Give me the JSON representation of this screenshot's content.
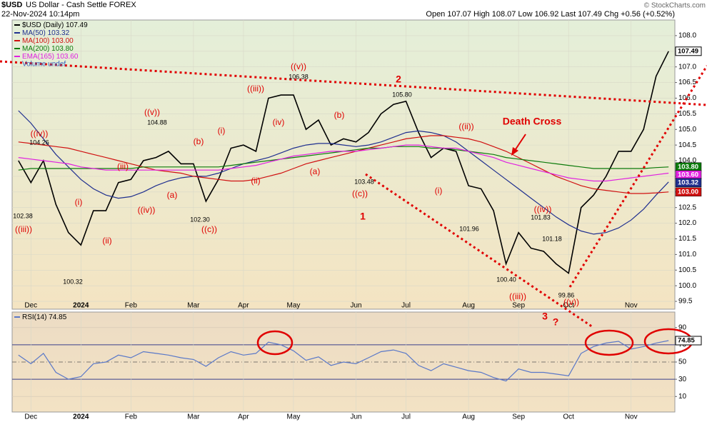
{
  "header": {
    "symbol": "$USD",
    "name": "US Dollar - Cash Settle FOREX",
    "date": "22-Nov-2024 10:14pm",
    "quote": "Open 107.07 High 108.07 Low 106.92 Last 107.49 Chg +0.56 (+0.52%)",
    "credit": "© StockCharts.com"
  },
  "chart_data": [
    {
      "type": "line",
      "categories": [
        null,
        "Dec",
        null,
        null,
        null,
        "2024",
        null,
        null,
        null,
        "Feb",
        null,
        null,
        null,
        null,
        "Mar",
        null,
        null,
        null,
        "Apr",
        null,
        null,
        null,
        "May",
        null,
        null,
        null,
        null,
        "Jun",
        null,
        null,
        null,
        "Jul",
        null,
        null,
        null,
        null,
        "Aug",
        null,
        null,
        null,
        "Sep",
        null,
        null,
        null,
        "Oct",
        null,
        null,
        null,
        null,
        "Nov",
        null,
        null,
        null
      ],
      "series": [
        {
          "name": "$USD (Daily)",
          "color": "#000000",
          "value_label": "107.49",
          "values": [
            104.0,
            103.3,
            104.0,
            102.6,
            101.7,
            101.3,
            102.4,
            102.4,
            103.3,
            103.4,
            104.0,
            104.1,
            104.3,
            103.9,
            103.9,
            102.7,
            103.4,
            104.4,
            104.5,
            104.3,
            106.0,
            106.1,
            106.1,
            105.0,
            105.3,
            104.5,
            104.7,
            104.6,
            104.9,
            105.5,
            105.8,
            105.9,
            104.9,
            104.1,
            104.4,
            104.3,
            103.2,
            103.1,
            102.4,
            100.7,
            101.7,
            101.2,
            101.1,
            100.7,
            100.4,
            102.5,
            102.9,
            103.5,
            104.3,
            104.3,
            105.0,
            106.7,
            107.5
          ]
        },
        {
          "name": "MA(50)",
          "color": "#1f2f8f",
          "value_label": "103.32",
          "values": [
            105.6,
            105.2,
            104.7,
            104.2,
            103.8,
            103.4,
            103.1,
            102.9,
            102.8,
            102.85,
            103.0,
            103.2,
            103.35,
            103.45,
            103.5,
            103.5,
            103.6,
            103.75,
            103.9,
            104.0,
            104.1,
            104.25,
            104.4,
            104.5,
            104.55,
            104.55,
            104.5,
            104.45,
            104.5,
            104.6,
            104.75,
            104.9,
            104.95,
            104.9,
            104.8,
            104.6,
            104.3,
            104.0,
            103.7,
            103.4,
            103.1,
            102.8,
            102.5,
            102.2,
            101.95,
            101.75,
            101.65,
            101.7,
            101.85,
            102.1,
            102.45,
            102.9,
            103.32
          ]
        },
        {
          "name": "MA(100)",
          "color": "#d01010",
          "value_label": "103.00",
          "values": [
            104.6,
            104.55,
            104.5,
            104.45,
            104.4,
            104.3,
            104.2,
            104.1,
            104.0,
            103.9,
            103.8,
            103.7,
            103.65,
            103.6,
            103.5,
            103.45,
            103.4,
            103.35,
            103.35,
            103.4,
            103.5,
            103.6,
            103.75,
            103.9,
            104.0,
            104.1,
            104.2,
            104.3,
            104.4,
            104.5,
            104.6,
            104.7,
            104.75,
            104.8,
            104.8,
            104.75,
            104.7,
            104.6,
            104.45,
            104.3,
            104.1,
            103.9,
            103.7,
            103.5,
            103.35,
            103.2,
            103.1,
            103.05,
            103.0,
            102.95,
            102.95,
            102.97,
            103.0
          ]
        },
        {
          "name": "MA(200)",
          "color": "#0b7a0b",
          "value_label": "103.80",
          "values": [
            103.7,
            103.75,
            103.75,
            103.75,
            103.75,
            103.75,
            103.75,
            103.75,
            103.75,
            103.75,
            103.8,
            103.8,
            103.8,
            103.8,
            103.8,
            103.8,
            103.8,
            103.85,
            103.9,
            103.95,
            104.0,
            104.05,
            104.1,
            104.15,
            104.2,
            104.25,
            104.3,
            104.35,
            104.4,
            104.4,
            104.45,
            104.45,
            104.45,
            104.4,
            104.4,
            104.35,
            104.3,
            104.25,
            104.2,
            104.1,
            104.05,
            104.0,
            103.95,
            103.9,
            103.85,
            103.8,
            103.75,
            103.75,
            103.75,
            103.75,
            103.75,
            103.78,
            103.8
          ]
        },
        {
          "name": "EMA(165)",
          "color": "#e020e0",
          "value_label": "103.60",
          "values": [
            104.1,
            104.05,
            104.0,
            103.95,
            103.9,
            103.8,
            103.75,
            103.7,
            103.7,
            103.7,
            103.7,
            103.7,
            103.7,
            103.7,
            103.7,
            103.7,
            103.7,
            103.75,
            103.8,
            103.85,
            103.95,
            104.05,
            104.15,
            104.2,
            104.25,
            104.3,
            104.3,
            104.3,
            104.35,
            104.4,
            104.45,
            104.5,
            104.5,
            104.45,
            104.4,
            104.4,
            104.3,
            104.2,
            104.1,
            103.95,
            103.85,
            103.75,
            103.65,
            103.55,
            103.45,
            103.4,
            103.35,
            103.35,
            103.4,
            103.45,
            103.5,
            103.55,
            103.6
          ]
        }
      ],
      "legend_extra": "Volume undef",
      "ylim": [
        99.25,
        108.5
      ],
      "yticks": [
        99.5,
        {
          "value": 100,
          "label": "100.0"
        },
        100.5,
        {
          "value": 101,
          "label": "101.0"
        },
        101.5,
        {
          "value": 102,
          "label": "102.0"
        },
        102.5,
        {
          "value": 103,
          "label": "103.0"
        },
        103.5,
        {
          "value": 104,
          "label": "104.0"
        },
        104.5,
        {
          "value": 105,
          "label": "105.0"
        },
        105.5,
        {
          "value": 106,
          "label": "106.0"
        },
        106.5,
        {
          "value": 107,
          "label": "107.0"
        },
        107.5,
        {
          "value": 108,
          "label": "108.0"
        }
      ],
      "grid": true,
      "wave_labels": [
        "((iii))",
        "((iv))",
        "(i)",
        "(ii)",
        "(iii)",
        "((iv))",
        "((v))",
        "(a)",
        "(b)",
        "((c))",
        "(i)",
        "(ii)",
        "((iii))",
        "(iv)",
        "((v))",
        "(a)",
        "(b)",
        "((c))",
        "1",
        "2",
        "((ii))",
        "(i)",
        "((iii))",
        "((iv))",
        "((v))",
        "3",
        "?",
        "Death Cross"
      ],
      "price_labels": [
        "104.26",
        "102.38",
        "100.32",
        "104.88",
        "102.30",
        "106.38",
        "103.48",
        "105.80",
        "101.96",
        "100.40",
        "101.83",
        "101.18",
        "99.86"
      ]
    },
    {
      "type": "line",
      "series": [
        {
          "name": "RSI(14)",
          "color": "#5a78c8",
          "value_label": "74.85",
          "values": [
            58,
            48,
            60,
            38,
            30,
            33,
            48,
            50,
            58,
            55,
            62,
            60,
            58,
            55,
            53,
            45,
            55,
            62,
            58,
            60,
            73,
            70,
            63,
            52,
            56,
            46,
            50,
            48,
            55,
            62,
            64,
            60,
            46,
            40,
            48,
            44,
            40,
            38,
            32,
            28,
            42,
            38,
            38,
            36,
            34,
            60,
            68,
            72,
            74,
            65,
            68,
            72,
            74.85
          ]
        }
      ],
      "ylim": [
        -8,
        108
      ],
      "yticks": [
        10,
        30,
        50,
        70,
        90
      ]
    }
  ]
}
